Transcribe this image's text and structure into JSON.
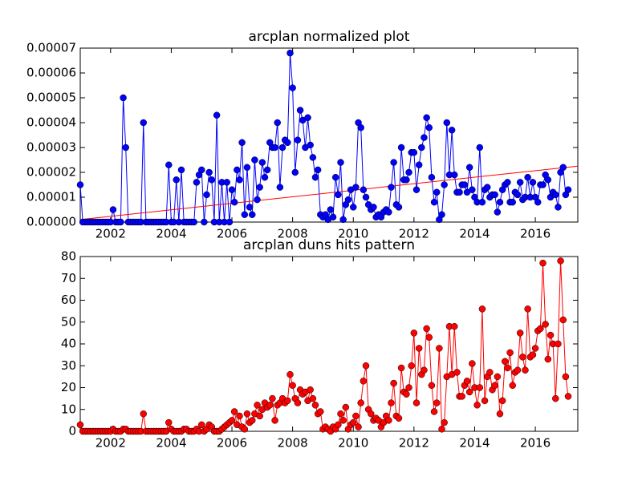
{
  "chart_data": [
    {
      "type": "line",
      "title": "arcplan normalized plot",
      "color": "#0000ff",
      "marker": true,
      "x": [
        2001,
        2001.083,
        2001.167,
        2001.25,
        2001.333,
        2001.417,
        2001.5,
        2001.583,
        2001.667,
        2001.75,
        2001.833,
        2001.917,
        2002,
        2002.083,
        2002.167,
        2002.25,
        2002.333,
        2002.417,
        2002.5,
        2002.583,
        2002.667,
        2002.75,
        2002.833,
        2002.917,
        2003,
        2003.083,
        2003.167,
        2003.25,
        2003.333,
        2003.417,
        2003.5,
        2003.583,
        2003.667,
        2003.75,
        2003.833,
        2003.917,
        2004,
        2004.083,
        2004.167,
        2004.25,
        2004.333,
        2004.417,
        2004.5,
        2004.583,
        2004.667,
        2004.75,
        2004.833,
        2004.917,
        2005,
        2005.083,
        2005.167,
        2005.25,
        2005.333,
        2005.417,
        2005.5,
        2005.583,
        2005.667,
        2005.75,
        2005.833,
        2005.917,
        2006,
        2006.083,
        2006.167,
        2006.25,
        2006.333,
        2006.417,
        2006.5,
        2006.583,
        2006.667,
        2006.75,
        2006.833,
        2006.917,
        2007,
        2007.083,
        2007.167,
        2007.25,
        2007.333,
        2007.417,
        2007.5,
        2007.583,
        2007.667,
        2007.75,
        2007.833,
        2007.917,
        2008,
        2008.083,
        2008.167,
        2008.25,
        2008.333,
        2008.417,
        2008.5,
        2008.583,
        2008.667,
        2008.75,
        2008.833,
        2008.917,
        2009,
        2009.083,
        2009.167,
        2009.25,
        2009.333,
        2009.417,
        2009.5,
        2009.583,
        2009.667,
        2009.75,
        2009.833,
        2009.917,
        2010,
        2010.083,
        2010.167,
        2010.25,
        2010.333,
        2010.417,
        2010.5,
        2010.583,
        2010.667,
        2010.75,
        2010.833,
        2010.917,
        2011,
        2011.083,
        2011.167,
        2011.25,
        2011.333,
        2011.417,
        2011.5,
        2011.583,
        2011.667,
        2011.75,
        2011.833,
        2011.917,
        2012,
        2012.083,
        2012.167,
        2012.25,
        2012.333,
        2012.417,
        2012.5,
        2012.583,
        2012.667,
        2012.75,
        2012.833,
        2012.917,
        2013,
        2013.083,
        2013.167,
        2013.25,
        2013.333,
        2013.417,
        2013.5,
        2013.583,
        2013.667,
        2013.75,
        2013.833,
        2013.917,
        2014,
        2014.083,
        2014.167,
        2014.25,
        2014.333,
        2014.417,
        2014.5,
        2014.583,
        2014.667,
        2014.75,
        2014.833,
        2014.917,
        2015,
        2015.083,
        2015.167,
        2015.25,
        2015.333,
        2015.417,
        2015.5,
        2015.583,
        2015.667,
        2015.75,
        2015.833,
        2015.917,
        2016,
        2016.083,
        2016.167,
        2016.25,
        2016.333,
        2016.417,
        2016.5,
        2016.583,
        2016.667,
        2016.75,
        2016.833,
        2016.917,
        2017,
        2017.083
      ],
      "values": [
        1.5e-05,
        0,
        0,
        0,
        0,
        0,
        0,
        0,
        0,
        0,
        0,
        0,
        0,
        5e-06,
        0,
        0,
        0,
        5e-05,
        3e-05,
        0,
        0,
        0,
        0,
        0,
        0,
        4e-05,
        0,
        0,
        0,
        0,
        0,
        0,
        0,
        0,
        0,
        2.3e-05,
        0,
        0,
        1.7e-05,
        0,
        2.1e-05,
        0,
        0,
        0,
        0,
        0,
        1.6e-05,
        1.9e-05,
        2.1e-05,
        0,
        1.1e-05,
        2e-05,
        1.7e-05,
        0,
        4.3e-05,
        0,
        1.6e-05,
        0,
        1.6e-05,
        0,
        1.3e-05,
        8e-06,
        2.1e-05,
        1.7e-05,
        3.2e-05,
        3e-06,
        2.2e-05,
        6e-06,
        3e-06,
        2.5e-05,
        9e-06,
        1.4e-05,
        2.4e-05,
        1.8e-05,
        2.1e-05,
        3.2e-05,
        3e-05,
        3e-05,
        4e-05,
        1.4e-05,
        3e-05,
        3.3e-05,
        3.2e-05,
        6.8e-05,
        5.4e-05,
        2e-05,
        3.3e-05,
        4.5e-05,
        4.1e-05,
        3e-05,
        4.2e-05,
        3.1e-05,
        2.6e-05,
        1.8e-05,
        2.1e-05,
        3e-06,
        2e-06,
        3e-06,
        1e-06,
        5e-06,
        2e-06,
        1.8e-05,
        1.1e-05,
        2.4e-05,
        1e-06,
        7e-06,
        9e-06,
        1.3e-05,
        6e-06,
        1.4e-05,
        4e-05,
        3.8e-05,
        1.3e-05,
        1e-05,
        7e-06,
        5e-06,
        6e-06,
        2e-06,
        3e-06,
        2e-06,
        4e-06,
        5e-06,
        4e-06,
        1.4e-05,
        2.4e-05,
        7e-06,
        6e-06,
        3e-05,
        1.7e-05,
        1.7e-05,
        2e-05,
        2.8e-05,
        2.8e-05,
        1.3e-05,
        2.3e-05,
        3e-05,
        3.4e-05,
        4.2e-05,
        3.8e-05,
        1.8e-05,
        8e-06,
        1.2e-05,
        1e-06,
        3e-06,
        1.5e-05,
        4e-05,
        1.9e-05,
        3.7e-05,
        1.9e-05,
        1.2e-05,
        1.2e-05,
        1.5e-05,
        1.5e-05,
        1.2e-05,
        2.2e-05,
        1.3e-05,
        1e-05,
        8e-06,
        3e-05,
        8e-06,
        1.3e-05,
        1.4e-05,
        1e-05,
        1.1e-05,
        1.1e-05,
        4e-06,
        8e-06,
        1.3e-05,
        1.5e-05,
        1.6e-05,
        8e-06,
        8e-06,
        1.2e-05,
        1.1e-05,
        1.6e-05,
        9e-06,
        1e-05,
        1.8e-05,
        1e-05,
        1.6e-05,
        1e-05,
        8e-06,
        1.5e-05,
        1.5e-05,
        1.9e-05,
        1.7e-05,
        1e-05,
        1.2e-05,
        1.1e-05,
        6e-06,
        2e-05,
        2.2e-05,
        1.1e-05,
        1.3e-05
      ],
      "trend_line": {
        "x": [
          2001,
          2017.4
        ],
        "values": [
          1e-06,
          2.25e-05
        ],
        "color": "#ff0000"
      },
      "xlim": [
        2001,
        2017.4
      ],
      "xticks": [
        2002,
        2004,
        2006,
        2008,
        2010,
        2012,
        2014,
        2016
      ],
      "ylim": [
        0,
        7e-05
      ],
      "yticks": [
        {
          "value": 0,
          "label": "0.00000"
        },
        {
          "value": 1e-05,
          "label": "0.00001"
        },
        {
          "value": 2e-05,
          "label": "0.00002"
        },
        {
          "value": 3e-05,
          "label": "0.00003"
        },
        {
          "value": 4e-05,
          "label": "0.00004"
        },
        {
          "value": 5e-05,
          "label": "0.00005"
        },
        {
          "value": 6e-05,
          "label": "0.00006"
        },
        {
          "value": 7e-05,
          "label": "0.00007"
        }
      ]
    },
    {
      "type": "line",
      "title": "arcplan duns hits pattern",
      "color": "#ff0000",
      "marker": true,
      "x": [
        2001,
        2001.083,
        2001.167,
        2001.25,
        2001.333,
        2001.417,
        2001.5,
        2001.583,
        2001.667,
        2001.75,
        2001.833,
        2001.917,
        2002,
        2002.083,
        2002.167,
        2002.25,
        2002.333,
        2002.417,
        2002.5,
        2002.583,
        2002.667,
        2002.75,
        2002.833,
        2002.917,
        2003,
        2003.083,
        2003.167,
        2003.25,
        2003.333,
        2003.417,
        2003.5,
        2003.583,
        2003.667,
        2003.75,
        2003.833,
        2003.917,
        2004,
        2004.083,
        2004.167,
        2004.25,
        2004.333,
        2004.417,
        2004.5,
        2004.583,
        2004.667,
        2004.75,
        2004.833,
        2004.917,
        2005,
        2005.083,
        2005.167,
        2005.25,
        2005.333,
        2005.417,
        2005.5,
        2005.583,
        2005.667,
        2005.75,
        2005.833,
        2005.917,
        2006,
        2006.083,
        2006.167,
        2006.25,
        2006.333,
        2006.417,
        2006.5,
        2006.583,
        2006.667,
        2006.75,
        2006.833,
        2006.917,
        2007,
        2007.083,
        2007.167,
        2007.25,
        2007.333,
        2007.417,
        2007.5,
        2007.583,
        2007.667,
        2007.75,
        2007.833,
        2007.917,
        2008,
        2008.083,
        2008.167,
        2008.25,
        2008.333,
        2008.417,
        2008.5,
        2008.583,
        2008.667,
        2008.75,
        2008.833,
        2008.917,
        2009,
        2009.083,
        2009.167,
        2009.25,
        2009.333,
        2009.417,
        2009.5,
        2009.583,
        2009.667,
        2009.75,
        2009.833,
        2009.917,
        2010,
        2010.083,
        2010.167,
        2010.25,
        2010.333,
        2010.417,
        2010.5,
        2010.583,
        2010.667,
        2010.75,
        2010.833,
        2010.917,
        2011,
        2011.083,
        2011.167,
        2011.25,
        2011.333,
        2011.417,
        2011.5,
        2011.583,
        2011.667,
        2011.75,
        2011.833,
        2011.917,
        2012,
        2012.083,
        2012.167,
        2012.25,
        2012.333,
        2012.417,
        2012.5,
        2012.583,
        2012.667,
        2012.75,
        2012.833,
        2012.917,
        2013,
        2013.083,
        2013.167,
        2013.25,
        2013.333,
        2013.417,
        2013.5,
        2013.583,
        2013.667,
        2013.75,
        2013.833,
        2013.917,
        2014,
        2014.083,
        2014.167,
        2014.25,
        2014.333,
        2014.417,
        2014.5,
        2014.583,
        2014.667,
        2014.75,
        2014.833,
        2014.917,
        2015,
        2015.083,
        2015.167,
        2015.25,
        2015.333,
        2015.417,
        2015.5,
        2015.583,
        2015.667,
        2015.75,
        2015.833,
        2015.917,
        2016,
        2016.083,
        2016.167,
        2016.25,
        2016.333,
        2016.417,
        2016.5,
        2016.583,
        2016.667,
        2016.75,
        2016.833,
        2016.917,
        2017,
        2017.083
      ],
      "values": [
        3,
        0,
        0,
        0,
        0,
        0,
        0,
        0,
        0,
        0,
        0,
        0,
        0,
        1,
        0,
        0,
        0,
        1,
        1,
        0,
        0,
        0,
        0,
        0,
        0,
        8,
        0,
        0,
        0,
        0,
        0,
        0,
        0,
        0,
        0,
        4,
        1,
        0,
        0,
        0,
        0,
        1,
        1,
        0,
        0,
        0,
        1,
        0,
        3,
        0,
        1,
        3,
        2,
        0,
        0,
        0,
        1,
        2,
        3,
        4,
        5,
        9,
        3,
        7,
        2,
        1,
        8,
        4,
        5,
        8,
        12,
        7,
        10,
        13,
        11,
        12,
        15,
        5,
        12,
        13,
        15,
        13,
        14,
        26,
        21,
        15,
        13,
        19,
        17,
        18,
        14,
        19,
        15,
        12,
        8,
        9,
        1,
        2,
        1,
        0,
        2,
        1,
        3,
        8,
        5,
        11,
        1,
        3,
        4,
        7,
        2,
        13,
        23,
        30,
        10,
        8,
        5,
        6,
        5,
        2,
        4,
        7,
        5,
        13,
        22,
        7,
        6,
        29,
        18,
        17,
        20,
        30,
        45,
        13,
        38,
        26,
        28,
        47,
        43,
        21,
        9,
        13,
        38,
        1,
        4,
        25,
        48,
        26,
        48,
        27,
        16,
        16,
        21,
        23,
        18,
        31,
        20,
        12,
        20,
        56,
        14,
        25,
        27,
        19,
        21,
        25,
        8,
        14,
        32,
        29,
        36,
        21,
        27,
        28,
        45,
        34,
        28,
        56,
        34,
        35,
        38,
        46,
        47,
        77,
        49,
        33,
        44,
        40,
        15,
        40,
        78,
        51,
        25,
        16
      ],
      "xlim": [
        2001,
        2017.4
      ],
      "xticks": [
        2002,
        2004,
        2006,
        2008,
        2010,
        2012,
        2014,
        2016
      ],
      "ylim": [
        0,
        80
      ],
      "yticks": [
        0,
        10,
        20,
        30,
        40,
        50,
        60,
        70,
        80
      ]
    }
  ]
}
